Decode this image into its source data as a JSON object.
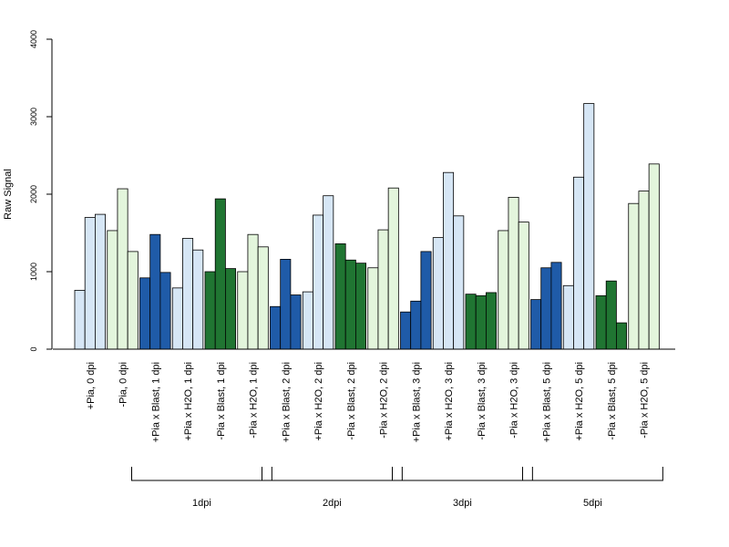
{
  "chart_data": {
    "type": "bar",
    "ylabel": "Raw Signal",
    "xlabel": "",
    "title": "",
    "ylim": [
      0,
      4000
    ],
    "yticks": [
      0,
      1000,
      2000,
      3000,
      4000
    ],
    "grid": false,
    "legend": "none",
    "colors": {
      "light_blue": "#d6e6f5",
      "light_green": "#e3f5dc",
      "dark_blue": "#1f5ba8",
      "dark_green": "#207532",
      "outline": "#000000"
    },
    "categories": [
      {
        "label": "+Pia, 0 dpi",
        "color": "light_blue",
        "values": [
          760,
          1700,
          1740
        ]
      },
      {
        "label": "-Pia, 0 dpi",
        "color": "light_green",
        "values": [
          1530,
          2070,
          1260
        ]
      },
      {
        "label": "+Pia x Blast, 1 dpi",
        "color": "dark_blue",
        "values": [
          920,
          1480,
          990
        ]
      },
      {
        "label": "+Pia x H2O, 1 dpi",
        "color": "light_blue",
        "values": [
          790,
          1430,
          1280
        ]
      },
      {
        "label": "-Pia x Blast, 1 dpi",
        "color": "dark_green",
        "values": [
          1000,
          1940,
          1040
        ]
      },
      {
        "label": "-Pia x H2O, 1 dpi",
        "color": "light_green",
        "values": [
          1000,
          1480,
          1320
        ]
      },
      {
        "label": "+Pia x Blast, 2 dpi",
        "color": "dark_blue",
        "values": [
          550,
          1160,
          700
        ]
      },
      {
        "label": "+Pia x H2O, 2 dpi",
        "color": "light_blue",
        "values": [
          740,
          1730,
          1980
        ]
      },
      {
        "label": "-Pia x Blast, 2 dpi",
        "color": "dark_green",
        "values": [
          1360,
          1150,
          1110
        ]
      },
      {
        "label": "-Pia x H2O, 2 dpi",
        "color": "light_green",
        "values": [
          1050,
          1540,
          2080
        ]
      },
      {
        "label": "+Pia x Blast, 3 dpi",
        "color": "dark_blue",
        "values": [
          480,
          620,
          1260
        ]
      },
      {
        "label": "+Pia x H2O, 3 dpi",
        "color": "light_blue",
        "values": [
          1440,
          2280,
          1720
        ]
      },
      {
        "label": "-Pia x Blast, 3 dpi",
        "color": "dark_green",
        "values": [
          710,
          690,
          730
        ]
      },
      {
        "label": "-Pia x H2O, 3 dpi",
        "color": "light_green",
        "values": [
          1530,
          1960,
          1640
        ]
      },
      {
        "label": "+Pia x Blast, 5 dpi",
        "color": "dark_blue",
        "values": [
          640,
          1050,
          1120
        ]
      },
      {
        "label": "+Pia x H2O, 5 dpi",
        "color": "light_blue",
        "values": [
          820,
          2220,
          3170
        ]
      },
      {
        "label": "-Pia x Blast, 5 dpi",
        "color": "dark_green",
        "values": [
          690,
          880,
          340
        ]
      },
      {
        "label": "-Pia x H2O, 5 dpi",
        "color": "light_green",
        "values": [
          1880,
          2040,
          2390
        ]
      }
    ],
    "groups": [
      {
        "label": "1dpi",
        "start_category": 2,
        "end_category": 5
      },
      {
        "label": "2dpi",
        "start_category": 6,
        "end_category": 9
      },
      {
        "label": "3dpi",
        "start_category": 10,
        "end_category": 13
      },
      {
        "label": "5dpi",
        "start_category": 14,
        "end_category": 17
      }
    ]
  }
}
